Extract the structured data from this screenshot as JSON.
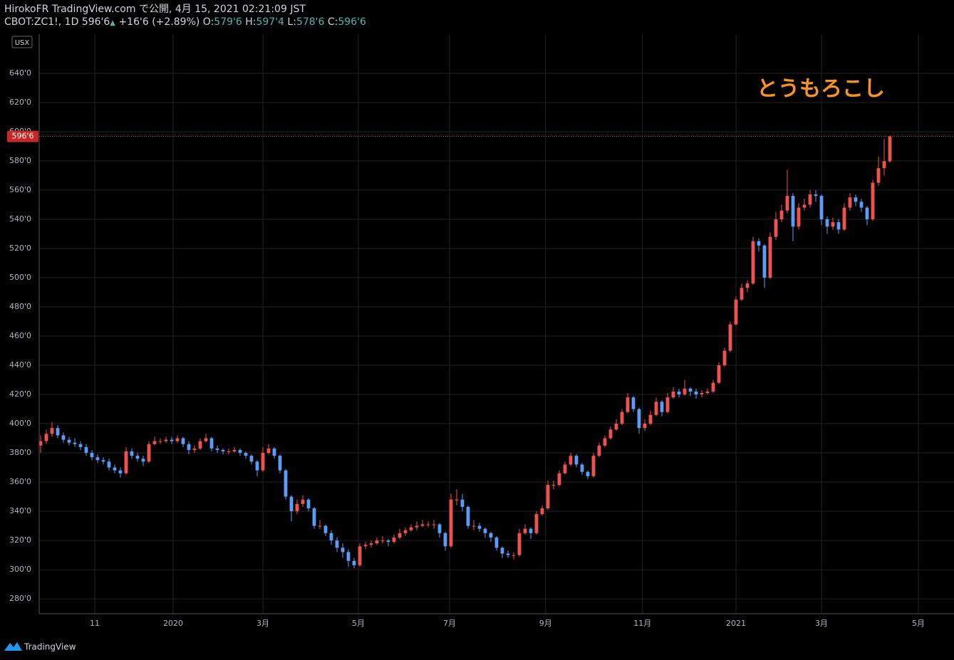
{
  "header": {
    "line1": "HirokoFR TradingView.com で公開, 4月 15, 2021 02:21:09 JST",
    "symbol": "CBOT:ZC1!, 1D",
    "last": "596'6",
    "change": "+16'6 (+2.89%)",
    "o_label": "O:",
    "o": "579'6",
    "h_label": "H:",
    "h": "597'4",
    "l_label": "L:",
    "l": "578'6",
    "c_label": "C:",
    "c": "596'6"
  },
  "footer": {
    "logo": "TradingView"
  },
  "chart_data": {
    "type": "candlestick",
    "annotation": "とうもろこし",
    "currency": "USX",
    "last_price_label": "596'6",
    "up_color": "#ef5350",
    "down_color": "#5b9cf6",
    "grid": true,
    "ylim": [
      269.8,
      666.8
    ],
    "yticks": [
      {
        "value": 280,
        "label": "280'0"
      },
      {
        "value": 300,
        "label": "300'0"
      },
      {
        "value": 320,
        "label": "320'0"
      },
      {
        "value": 340,
        "label": "340'0"
      },
      {
        "value": 360,
        "label": "360'0"
      },
      {
        "value": 380,
        "label": "380'0"
      },
      {
        "value": 400,
        "label": "400'0"
      },
      {
        "value": 420,
        "label": "420'0"
      },
      {
        "value": 440,
        "label": "440'0"
      },
      {
        "value": 460,
        "label": "460'0"
      },
      {
        "value": 480,
        "label": "480'0"
      },
      {
        "value": 500,
        "label": "500'0"
      },
      {
        "value": 520,
        "label": "520'0"
      },
      {
        "value": 540,
        "label": "540'0"
      },
      {
        "value": 560,
        "label": "560'0"
      },
      {
        "value": 580,
        "label": "580'0"
      },
      {
        "value": 600,
        "label": "600'0"
      },
      {
        "value": 620,
        "label": "620'0"
      },
      {
        "value": 640,
        "label": "640'0"
      }
    ],
    "xlim": [
      -0.25,
      159.125
    ],
    "xticks": [
      {
        "value": 9.5,
        "label": "11"
      },
      {
        "value": 23.25,
        "label": "2020"
      },
      {
        "value": 39,
        "label": "3月"
      },
      {
        "value": 55.75,
        "label": "5月"
      },
      {
        "value": 71.75,
        "label": "7月"
      },
      {
        "value": 88.6,
        "label": "9月"
      },
      {
        "value": 105.6,
        "label": "11月"
      },
      {
        "value": 122,
        "label": "2021"
      },
      {
        "value": 137,
        "label": "3月"
      },
      {
        "value": 154,
        "label": "5月"
      }
    ],
    "ohlc": [
      [
        385,
        392,
        380,
        388
      ],
      [
        388,
        396,
        386,
        393
      ],
      [
        393,
        401,
        391,
        397
      ],
      [
        397,
        399,
        390,
        392
      ],
      [
        392,
        394,
        387,
        389
      ],
      [
        389,
        391,
        385,
        387
      ],
      [
        387,
        390,
        384,
        386
      ],
      [
        386,
        388,
        382,
        384
      ],
      [
        384,
        386,
        378,
        380
      ],
      [
        380,
        382,
        375,
        377
      ],
      [
        377,
        379,
        373,
        375
      ],
      [
        375,
        377,
        372,
        374
      ],
      [
        374,
        376,
        368,
        370
      ],
      [
        370,
        372,
        366,
        368
      ],
      [
        368,
        370,
        363,
        366
      ],
      [
        366,
        384,
        365,
        381
      ],
      [
        381,
        383,
        376,
        378
      ],
      [
        378,
        380,
        374,
        376
      ],
      [
        376,
        378,
        371,
        374
      ],
      [
        374,
        388,
        373,
        386
      ],
      [
        386,
        391,
        385,
        388
      ],
      [
        388,
        390,
        386,
        388
      ],
      [
        388,
        391,
        387,
        389
      ],
      [
        389,
        391,
        386,
        388
      ],
      [
        388,
        392,
        387,
        390
      ],
      [
        390,
        391,
        384,
        386
      ],
      [
        386,
        388,
        379,
        382
      ],
      [
        382,
        385,
        380,
        383
      ],
      [
        383,
        390,
        382,
        388
      ],
      [
        388,
        393,
        387,
        390
      ],
      [
        390,
        391,
        381,
        383
      ],
      [
        383,
        385,
        380,
        382
      ],
      [
        382,
        383,
        379,
        381
      ],
      [
        381,
        383,
        379,
        381
      ],
      [
        381,
        384,
        380,
        382
      ],
      [
        382,
        383,
        378,
        380
      ],
      [
        380,
        381,
        376,
        378
      ],
      [
        378,
        379,
        372,
        374
      ],
      [
        374,
        375,
        364,
        368
      ],
      [
        368,
        384,
        367,
        380
      ],
      [
        380,
        386,
        379,
        383
      ],
      [
        383,
        384,
        376,
        378
      ],
      [
        378,
        379,
        366,
        368
      ],
      [
        368,
        369,
        348,
        350
      ],
      [
        350,
        351,
        333,
        340
      ],
      [
        340,
        348,
        338,
        345
      ],
      [
        345,
        351,
        343,
        348
      ],
      [
        348,
        349,
        340,
        342
      ],
      [
        342,
        343,
        328,
        330
      ],
      [
        330,
        334,
        328,
        330
      ],
      [
        330,
        331,
        323,
        325
      ],
      [
        325,
        327,
        317,
        320
      ],
      [
        320,
        322,
        312,
        315
      ],
      [
        315,
        318,
        308,
        312
      ],
      [
        312,
        314,
        302,
        306
      ],
      [
        306,
        308,
        301,
        303
      ],
      [
        303,
        318,
        302,
        316
      ],
      [
        316,
        319,
        314,
        317
      ],
      [
        317,
        320,
        315,
        318
      ],
      [
        318,
        322,
        317,
        320
      ],
      [
        320,
        323,
        318,
        320
      ],
      [
        320,
        321,
        316,
        319
      ],
      [
        319,
        324,
        318,
        322
      ],
      [
        322,
        328,
        321,
        325
      ],
      [
        325,
        329,
        323,
        327
      ],
      [
        327,
        331,
        326,
        329
      ],
      [
        329,
        333,
        327,
        330
      ],
      [
        330,
        334,
        329,
        331
      ],
      [
        331,
        333,
        329,
        331
      ],
      [
        331,
        334,
        328,
        331
      ],
      [
        331,
        332,
        322,
        325
      ],
      [
        325,
        326,
        313,
        316
      ],
      [
        316,
        352,
        315,
        348
      ],
      [
        348,
        355,
        344,
        348
      ],
      [
        348,
        352,
        340,
        343
      ],
      [
        343,
        344,
        328,
        330
      ],
      [
        330,
        334,
        327,
        330
      ],
      [
        330,
        332,
        326,
        328
      ],
      [
        328,
        329,
        322,
        325
      ],
      [
        325,
        326,
        319,
        322
      ],
      [
        322,
        323,
        313,
        315
      ],
      [
        315,
        316,
        308,
        311
      ],
      [
        311,
        313,
        308,
        310
      ],
      [
        310,
        312,
        307,
        310
      ],
      [
        310,
        328,
        309,
        325
      ],
      [
        325,
        331,
        324,
        328
      ],
      [
        328,
        329,
        321,
        325
      ],
      [
        325,
        340,
        324,
        338
      ],
      [
        338,
        344,
        337,
        342
      ],
      [
        342,
        361,
        341,
        358
      ],
      [
        358,
        361,
        355,
        358
      ],
      [
        358,
        368,
        357,
        366
      ],
      [
        366,
        374,
        365,
        372
      ],
      [
        372,
        380,
        371,
        378
      ],
      [
        378,
        379,
        370,
        372
      ],
      [
        372,
        373,
        365,
        367
      ],
      [
        367,
        368,
        362,
        364
      ],
      [
        364,
        380,
        363,
        378
      ],
      [
        378,
        387,
        377,
        385
      ],
      [
        385,
        392,
        384,
        390
      ],
      [
        390,
        398,
        389,
        396
      ],
      [
        396,
        403,
        395,
        400
      ],
      [
        400,
        410,
        399,
        408
      ],
      [
        408,
        421,
        407,
        418
      ],
      [
        418,
        419,
        408,
        410
      ],
      [
        410,
        411,
        393,
        397
      ],
      [
        397,
        403,
        395,
        400
      ],
      [
        400,
        409,
        399,
        406
      ],
      [
        406,
        418,
        405,
        415
      ],
      [
        415,
        416,
        405,
        408
      ],
      [
        408,
        421,
        407,
        418
      ],
      [
        418,
        425,
        417,
        422
      ],
      [
        422,
        424,
        418,
        420
      ],
      [
        420,
        430,
        419,
        424
      ],
      [
        424,
        425,
        419,
        422
      ],
      [
        422,
        424,
        417,
        420
      ],
      [
        420,
        423,
        418,
        421
      ],
      [
        421,
        424,
        420,
        422
      ],
      [
        422,
        430,
        421,
        428
      ],
      [
        428,
        442,
        427,
        440
      ],
      [
        440,
        452,
        439,
        450
      ],
      [
        450,
        470,
        449,
        468
      ],
      [
        468,
        487,
        467,
        485
      ],
      [
        485,
        496,
        484,
        493
      ],
      [
        493,
        498,
        490,
        496
      ],
      [
        496,
        528,
        495,
        525
      ],
      [
        525,
        527,
        518,
        522
      ],
      [
        522,
        523,
        493,
        500
      ],
      [
        500,
        531,
        499,
        528
      ],
      [
        528,
        545,
        526,
        540
      ],
      [
        540,
        550,
        538,
        546
      ],
      [
        546,
        574,
        544,
        556
      ],
      [
        556,
        558,
        525,
        535
      ],
      [
        535,
        551,
        533,
        548
      ],
      [
        548,
        554,
        546,
        550
      ],
      [
        550,
        560,
        548,
        557
      ],
      [
        557,
        560,
        552,
        556
      ],
      [
        556,
        557,
        536,
        540
      ],
      [
        540,
        542,
        530,
        535
      ],
      [
        535,
        541,
        533,
        538
      ],
      [
        538,
        540,
        530,
        533
      ],
      [
        533,
        551,
        532,
        548
      ],
      [
        548,
        558,
        546,
        555
      ],
      [
        555,
        557,
        549,
        552
      ],
      [
        552,
        554,
        545,
        548
      ],
      [
        548,
        549,
        536,
        540
      ],
      [
        540,
        567,
        539,
        565
      ],
      [
        565,
        583,
        563,
        575
      ],
      [
        575,
        595,
        570,
        579.75
      ],
      [
        579.75,
        597.5,
        578.75,
        596.75
      ]
    ]
  }
}
